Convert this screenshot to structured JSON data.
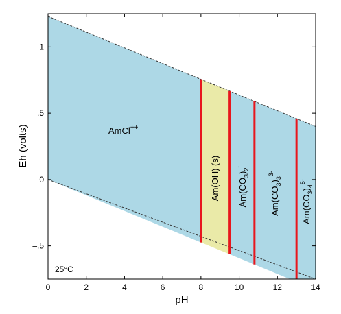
{
  "chart_data": {
    "type": "area",
    "title": "",
    "xlabel": "pH",
    "ylabel": "Eh (volts)",
    "xlim": [
      0,
      14
    ],
    "ylim": [
      -0.75,
      1.25
    ],
    "x_ticks": [
      0,
      2,
      4,
      6,
      8,
      10,
      12,
      14
    ],
    "x_tick_labels": [
      "0",
      "2",
      "4",
      "6",
      "8",
      "10",
      "12",
      "14"
    ],
    "y_ticks": [
      -0.5,
      0,
      0.5,
      1
    ],
    "y_tick_labels": [
      "–.5",
      "0",
      ".5",
      "1"
    ],
    "grid": false,
    "temperature_label": "25°C",
    "water_stability": {
      "upper": {
        "x": [
          0,
          14
        ],
        "y": [
          1.23,
          0.4
        ]
      },
      "lower": {
        "x": [
          0,
          14
        ],
        "y": [
          0.0,
          -0.83
        ]
      }
    },
    "fields": [
      {
        "name": "AmCl++",
        "x_min": 0,
        "x_max": 8.0,
        "color": "#add8e6"
      },
      {
        "name": "Am(OH) (s)",
        "x_min": 8.0,
        "x_max": 9.5,
        "color": "#eaeaa8"
      },
      {
        "name": "Am(CO3)2-",
        "x_min": 9.5,
        "x_max": 10.8,
        "color": "#add8e6"
      },
      {
        "name": "Am(CO3)3 3-",
        "x_min": 10.8,
        "x_max": 13.0,
        "color": "#add8e6"
      },
      {
        "name": "Am(CO3)4 5-",
        "x_min": 13.0,
        "x_max": 14,
        "color": "#add8e6"
      }
    ],
    "boundaries": [
      {
        "x": 8.0,
        "color": "#e8161d"
      },
      {
        "x": 9.5,
        "color": "#e8161d"
      },
      {
        "x": 10.8,
        "color": "#e8161d"
      },
      {
        "x": 13.0,
        "color": "#e8161d"
      }
    ],
    "labels": {
      "amcl": {
        "base": "AmCl",
        "sup": "++"
      },
      "amoh": {
        "text": "Am(OH) (s)"
      },
      "co3_2": {
        "base": "Am(CO",
        "sub1": "3",
        "mid": ")",
        "sub2": "2",
        "sup": "-"
      },
      "co3_3": {
        "base": "Am(CO",
        "sub1": "3",
        "mid": ")",
        "sub2": "3",
        "sup": "3-"
      },
      "co3_4": {
        "base": "Am(CO",
        "sub1": "3",
        "mid": ")",
        "sub2": "4",
        "sup": "5-"
      }
    }
  }
}
